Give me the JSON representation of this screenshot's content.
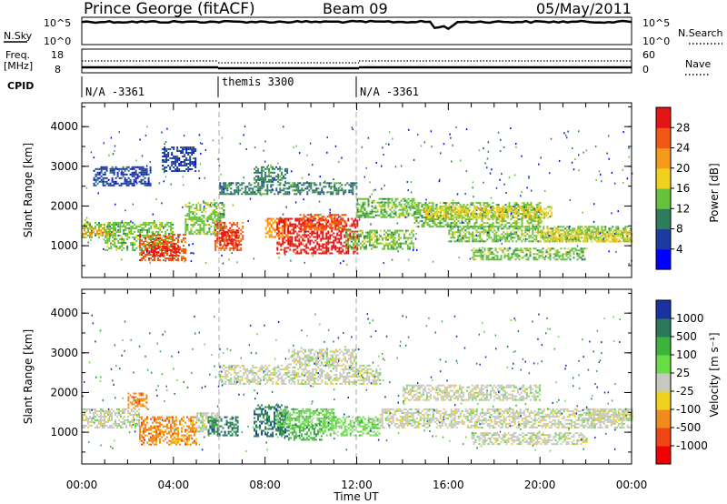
{
  "header": {
    "station": "Prince George (fitACF)",
    "beam": "Beam 09",
    "date": "05/May/2011"
  },
  "summary_panels": {
    "nsky_label": "N.Sky",
    "nsky_ticks": [
      "10^5",
      "10^0"
    ],
    "nsearch_label": "N.Search",
    "nsearch_ticks": [
      "10^5",
      "10^0"
    ],
    "freq_label_line1": "Freq.",
    "freq_label_line2": "[MHz]",
    "freq_ticks": [
      "18",
      "8"
    ],
    "nave_label": "Nave",
    "nave_ticks": [
      "60",
      "0"
    ],
    "cpid_label": "CPID",
    "cpid_segments": [
      {
        "label": "N/A -3361",
        "start_hour": 0,
        "end_hour": 6
      },
      {
        "label": "themis 3300",
        "start_hour": 6,
        "end_hour": 12
      },
      {
        "label": "N/A -3361",
        "start_hour": 12,
        "end_hour": 24
      }
    ]
  },
  "colorbars": {
    "power": {
      "label": "Power [dB]",
      "ticks": [
        "4",
        "8",
        "12",
        "16",
        "20",
        "24",
        "28"
      ],
      "colors": [
        "#0000ff",
        "#1e3ca0",
        "#2e7d5a",
        "#66c23a",
        "#f0d21e",
        "#f59a1a",
        "#f05a14",
        "#e61414"
      ]
    },
    "velocity": {
      "label": "Velocity [m s⁻¹]",
      "ticks": [
        "1000",
        "500",
        "100",
        "25",
        "-25",
        "-100",
        "-500",
        "-1000"
      ],
      "colors": [
        "#1a32a0",
        "#2a7a5a",
        "#3cb43c",
        "#66dd44",
        "#c8c8c0",
        "#f0d21e",
        "#f08c1e",
        "#f04614",
        "#f00000"
      ]
    }
  },
  "chart_data": [
    {
      "type": "heatmap",
      "name": "power",
      "ylabel": "Slant Range [km]",
      "yticks": [
        "1000",
        "2000",
        "3000",
        "4000"
      ],
      "ylim": [
        200,
        4600
      ],
      "xlim_hours": [
        0,
        24
      ],
      "bands": [
        {
          "t0": 0.0,
          "t1": 1.5,
          "r0": 1200,
          "r1": 1600,
          "level": 3
        },
        {
          "t0": 0.0,
          "t1": 1.2,
          "r0": 1300,
          "r1": 1450,
          "level": 5
        },
        {
          "t0": 1.0,
          "t1": 4.0,
          "r0": 900,
          "r1": 1600,
          "level": 3
        },
        {
          "t0": 2.5,
          "t1": 4.5,
          "r0": 650,
          "r1": 1300,
          "level": 6
        },
        {
          "t0": 3.0,
          "t1": 4.2,
          "r0": 750,
          "r1": 1000,
          "level": 7
        },
        {
          "t0": 4.5,
          "t1": 6.2,
          "r0": 1300,
          "r1": 2100,
          "level": 3
        },
        {
          "t0": 5.8,
          "t1": 7.0,
          "r0": 900,
          "r1": 1600,
          "level": 6
        },
        {
          "t0": 6.0,
          "t1": 6.8,
          "r0": 1000,
          "r1": 1400,
          "level": 7
        },
        {
          "t0": 8.0,
          "t1": 9.0,
          "r0": 1200,
          "r1": 1700,
          "level": 5
        },
        {
          "t0": 8.5,
          "t1": 12.0,
          "r0": 800,
          "r1": 1700,
          "level": 7
        },
        {
          "t0": 9.5,
          "t1": 11.5,
          "r0": 1400,
          "r1": 1800,
          "level": 6
        },
        {
          "t0": 11.5,
          "t1": 14.5,
          "r0": 900,
          "r1": 1400,
          "level": 3
        },
        {
          "t0": 12.0,
          "t1": 14.5,
          "r0": 1700,
          "r1": 2200,
          "level": 3
        },
        {
          "t0": 6.0,
          "t1": 12.0,
          "r0": 2300,
          "r1": 2600,
          "level": 2
        },
        {
          "t0": 7.5,
          "t1": 9.0,
          "r0": 2600,
          "r1": 3000,
          "level": 2
        },
        {
          "t0": 14.5,
          "t1": 20.0,
          "r0": 1500,
          "r1": 2100,
          "level": 3
        },
        {
          "t0": 15.0,
          "t1": 20.5,
          "r0": 1700,
          "r1": 2000,
          "level": 4
        },
        {
          "t0": 16.0,
          "t1": 24.0,
          "r0": 1100,
          "r1": 1500,
          "level": 3
        },
        {
          "t0": 17.0,
          "t1": 22.0,
          "r0": 650,
          "r1": 950,
          "level": 3
        },
        {
          "t0": 20.0,
          "t1": 24.0,
          "r0": 1100,
          "r1": 1400,
          "level": 4
        },
        {
          "t0": 0.5,
          "t1": 3.0,
          "r0": 2500,
          "r1": 3000,
          "level": 1
        },
        {
          "t0": 3.5,
          "t1": 5.0,
          "r0": 2900,
          "r1": 3500,
          "level": 1
        }
      ]
    },
    {
      "type": "heatmap",
      "name": "velocity",
      "ylabel": "Slant Range [km]",
      "yticks": [
        "1000",
        "2000",
        "3000",
        "4000"
      ],
      "ylim": [
        200,
        4600
      ],
      "xlim_hours": [
        0,
        24
      ],
      "xlabel": "Time UT",
      "xticks": [
        "00:00",
        "04:00",
        "08:00",
        "12:00",
        "16:00",
        "20:00",
        "00:00"
      ],
      "bands": [
        {
          "t0": 0.0,
          "t1": 2.5,
          "r0": 1100,
          "r1": 1600,
          "level": 4
        },
        {
          "t0": 2.5,
          "t1": 5.0,
          "r0": 700,
          "r1": 1400,
          "level": 6
        },
        {
          "t0": 2.0,
          "t1": 2.8,
          "r0": 1600,
          "r1": 2000,
          "level": 6
        },
        {
          "t0": 5.0,
          "t1": 6.0,
          "r0": 1000,
          "r1": 1500,
          "level": 4
        },
        {
          "t0": 5.5,
          "t1": 6.8,
          "r0": 900,
          "r1": 1400,
          "level": 1
        },
        {
          "t0": 7.5,
          "t1": 9.0,
          "r0": 900,
          "r1": 1700,
          "level": 1
        },
        {
          "t0": 8.5,
          "t1": 11.0,
          "r0": 1100,
          "r1": 1600,
          "level": 3
        },
        {
          "t0": 9.0,
          "t1": 10.5,
          "r0": 800,
          "r1": 1200,
          "level": 2
        },
        {
          "t0": 10.5,
          "t1": 13.0,
          "r0": 900,
          "r1": 1400,
          "level": 3
        },
        {
          "t0": 13.0,
          "t1": 24.0,
          "r0": 1100,
          "r1": 1600,
          "level": 4
        },
        {
          "t0": 6.0,
          "t1": 13.0,
          "r0": 2200,
          "r1": 2700,
          "level": 4
        },
        {
          "t0": 9.0,
          "t1": 12.0,
          "r0": 2700,
          "r1": 3100,
          "level": 4
        },
        {
          "t0": 14.0,
          "t1": 20.0,
          "r0": 1800,
          "r1": 2200,
          "level": 4
        },
        {
          "t0": 17.0,
          "t1": 22.0,
          "r0": 700,
          "r1": 1000,
          "level": 4
        },
        {
          "t0": 22.0,
          "t1": 24.0,
          "r0": 1300,
          "r1": 1600,
          "level": 4
        }
      ]
    }
  ]
}
